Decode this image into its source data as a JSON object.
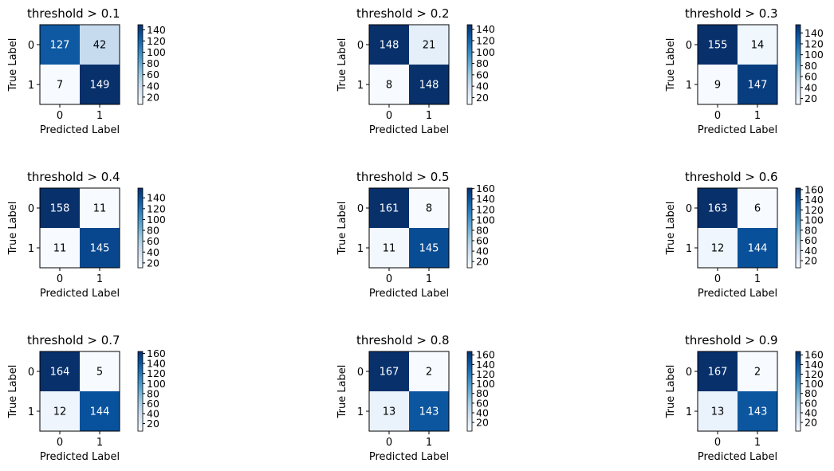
{
  "chart_data": [
    {
      "type": "heatmap",
      "title": "threshold > 0.1",
      "xlabel": "Predicted Label",
      "ylabel": "True Label",
      "x_ticks": [
        "0",
        "1"
      ],
      "y_ticks": [
        "0",
        "1"
      ],
      "matrix": [
        [
          127,
          42
        ],
        [
          7,
          149
        ]
      ],
      "colorbar_ticks": [
        20,
        40,
        60,
        80,
        100,
        120,
        140
      ],
      "colormap": "Blues",
      "grid": false
    },
    {
      "type": "heatmap",
      "title": "threshold > 0.2",
      "xlabel": "Predicted Label",
      "ylabel": "True Label",
      "x_ticks": [
        "0",
        "1"
      ],
      "y_ticks": [
        "0",
        "1"
      ],
      "matrix": [
        [
          148,
          21
        ],
        [
          8,
          148
        ]
      ],
      "colorbar_ticks": [
        20,
        40,
        60,
        80,
        100,
        120,
        140
      ],
      "colormap": "Blues",
      "grid": false
    },
    {
      "type": "heatmap",
      "title": "threshold > 0.3",
      "xlabel": "Predicted Label",
      "ylabel": "True Label",
      "x_ticks": [
        "0",
        "1"
      ],
      "y_ticks": [
        "0",
        "1"
      ],
      "matrix": [
        [
          155,
          14
        ],
        [
          9,
          147
        ]
      ],
      "colorbar_ticks": [
        20,
        40,
        60,
        80,
        100,
        120,
        140
      ],
      "colormap": "Blues",
      "grid": false
    },
    {
      "type": "heatmap",
      "title": "threshold > 0.4",
      "xlabel": "Predicted Label",
      "ylabel": "True Label",
      "x_ticks": [
        "0",
        "1"
      ],
      "y_ticks": [
        "0",
        "1"
      ],
      "matrix": [
        [
          158,
          11
        ],
        [
          11,
          145
        ]
      ],
      "colorbar_ticks": [
        20,
        40,
        60,
        80,
        100,
        120,
        140
      ],
      "colormap": "Blues",
      "grid": false
    },
    {
      "type": "heatmap",
      "title": "threshold > 0.5",
      "xlabel": "Predicted Label",
      "ylabel": "True Label",
      "x_ticks": [
        "0",
        "1"
      ],
      "y_ticks": [
        "0",
        "1"
      ],
      "matrix": [
        [
          161,
          8
        ],
        [
          11,
          145
        ]
      ],
      "colorbar_ticks": [
        20,
        40,
        60,
        80,
        100,
        120,
        140,
        160
      ],
      "colormap": "Blues",
      "grid": false
    },
    {
      "type": "heatmap",
      "title": "threshold > 0.6",
      "xlabel": "Predicted Label",
      "ylabel": "True Label",
      "x_ticks": [
        "0",
        "1"
      ],
      "y_ticks": [
        "0",
        "1"
      ],
      "matrix": [
        [
          163,
          6
        ],
        [
          12,
          144
        ]
      ],
      "colorbar_ticks": [
        20,
        40,
        60,
        80,
        100,
        120,
        140,
        160
      ],
      "colormap": "Blues",
      "grid": false
    },
    {
      "type": "heatmap",
      "title": "threshold > 0.7",
      "xlabel": "Predicted Label",
      "ylabel": "True Label",
      "x_ticks": [
        "0",
        "1"
      ],
      "y_ticks": [
        "0",
        "1"
      ],
      "matrix": [
        [
          164,
          5
        ],
        [
          12,
          144
        ]
      ],
      "colorbar_ticks": [
        20,
        40,
        60,
        80,
        100,
        120,
        140,
        160
      ],
      "colormap": "Blues",
      "grid": false
    },
    {
      "type": "heatmap",
      "title": "threshold > 0.8",
      "xlabel": "Predicted Label",
      "ylabel": "True Label",
      "x_ticks": [
        "0",
        "1"
      ],
      "y_ticks": [
        "0",
        "1"
      ],
      "matrix": [
        [
          167,
          2
        ],
        [
          13,
          143
        ]
      ],
      "colorbar_ticks": [
        20,
        40,
        60,
        80,
        100,
        120,
        140,
        160
      ],
      "colormap": "Blues",
      "grid": false
    },
    {
      "type": "heatmap",
      "title": "threshold > 0.9",
      "xlabel": "Predicted Label",
      "ylabel": "True Label",
      "x_ticks": [
        "0",
        "1"
      ],
      "y_ticks": [
        "0",
        "1"
      ],
      "matrix": [
        [
          167,
          2
        ],
        [
          13,
          143
        ]
      ],
      "colorbar_ticks": [
        20,
        40,
        60,
        80,
        100,
        120,
        140,
        160
      ],
      "colormap": "Blues",
      "grid": false
    }
  ]
}
